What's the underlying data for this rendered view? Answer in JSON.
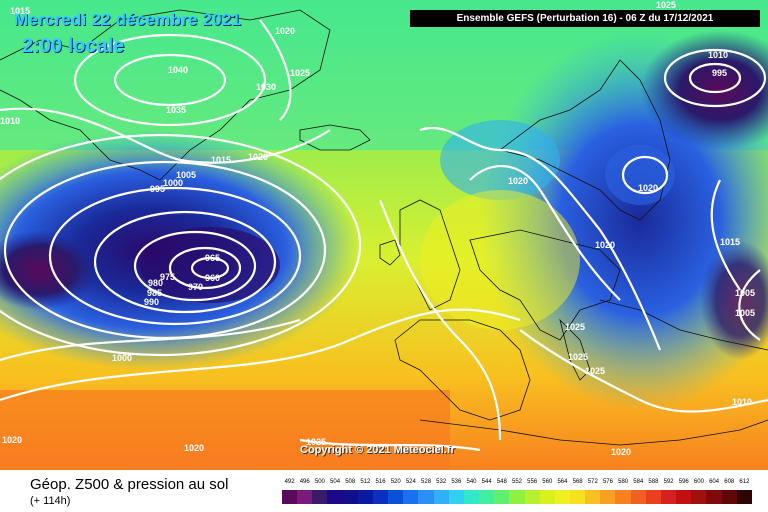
{
  "header": {
    "date": "Mercredi 22 décembre 2021",
    "local_time": "2:00 locale",
    "run_info": "Ensemble GEFS  (Perturbation 16)  -  06 Z du 17/12/2021"
  },
  "copyright": "Copyright © 2021 Meteociel.fr",
  "legend": {
    "title": "Géop. Z500 & pression au sol",
    "subtitle": "(+ 114h)",
    "scale_values": [
      "492",
      "496",
      "500",
      "504",
      "508",
      "512",
      "516",
      "520",
      "524",
      "528",
      "532",
      "536",
      "540",
      "544",
      "548",
      "552",
      "556",
      "560",
      "564",
      "568",
      "572",
      "576",
      "580",
      "584",
      "588",
      "592",
      "596",
      "600",
      "604",
      "608",
      "612"
    ],
    "scale_colors": [
      "#5a0a5a",
      "#7a1a7a",
      "#3a1a6a",
      "#1a0a8a",
      "#10108a",
      "#0a1aa0",
      "#0a30c0",
      "#0a50d8",
      "#1a70ee",
      "#2a90f8",
      "#30b0f8",
      "#30d0f0",
      "#30e8c8",
      "#40f0a0",
      "#60f070",
      "#90f040",
      "#b8f030",
      "#d8f020",
      "#f0f020",
      "#f8e020",
      "#f8c020",
      "#f8a020",
      "#f88020",
      "#f06020",
      "#e84020",
      "#d82020",
      "#c01010",
      "#a01010",
      "#800a0a",
      "#600808",
      "#300404"
    ]
  },
  "isobars": [
    "1015",
    "1010",
    "1040",
    "1035",
    "1020",
    "1025",
    "1030",
    "1005",
    "1000",
    "995",
    "1015",
    "1020",
    "965",
    "960",
    "975",
    "980",
    "985",
    "990",
    "970",
    "1000",
    "1020",
    "1025",
    "1020",
    "1010",
    "995",
    "1005",
    "1015",
    "1020",
    "1025",
    "1025",
    "1025",
    "1020",
    "1005",
    "1010",
    "1020",
    "1025",
    "1020"
  ],
  "colors": {
    "low_core": "#3a0a5a",
    "deep_blue": "#1a2a9a",
    "cyan": "#40e0f0",
    "green": "#60e060",
    "yellow": "#f0f020",
    "orange": "#f8a020",
    "isobar_line": "#ffffff"
  }
}
